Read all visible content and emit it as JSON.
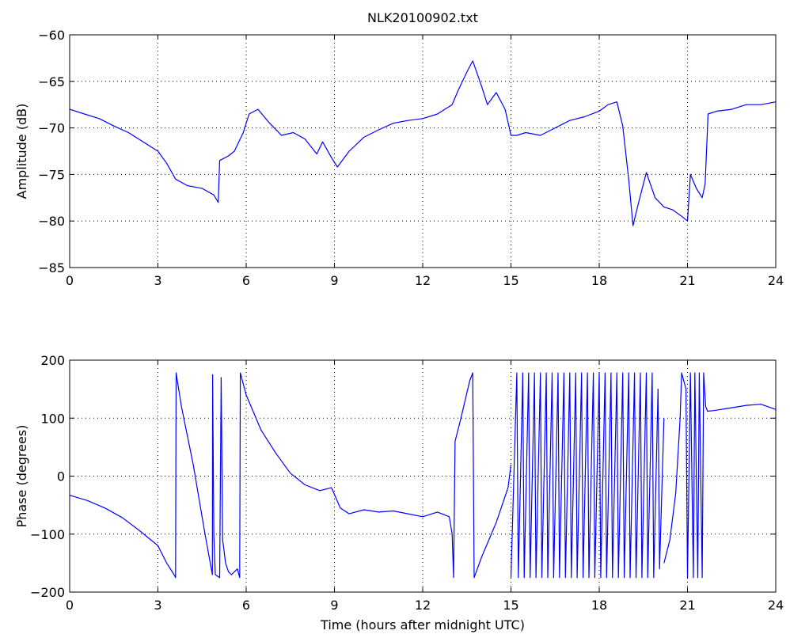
{
  "chart_data": [
    {
      "type": "line",
      "title": "NLK20100902.txt",
      "xlabel": "",
      "ylabel": "Amplitude (dB)",
      "xlim": [
        0,
        24
      ],
      "ylim": [
        -85,
        -60
      ],
      "xticks": [
        0,
        3,
        6,
        9,
        12,
        15,
        18,
        21,
        24
      ],
      "yticks": [
        -85,
        -80,
        -75,
        -70,
        -65,
        -60
      ],
      "xtick_labels": [
        "0",
        "3",
        "6",
        "9",
        "12",
        "15",
        "18",
        "21",
        "24"
      ],
      "ytick_labels": [
        "−85",
        "−80",
        "−75",
        "−70",
        "−65",
        "−60"
      ],
      "grid": true,
      "color": "#0000ff",
      "series": [
        {
          "x": [
            0,
            0.5,
            1,
            1.5,
            2,
            2.5,
            3,
            3.3,
            3.6,
            4,
            4.5,
            4.9,
            5.05,
            5.1,
            5.4,
            5.6,
            5.9,
            6.1,
            6.4,
            6.8,
            7.2,
            7.6,
            8,
            8.4,
            8.6,
            8.9,
            9.1,
            9.5,
            10,
            10.5,
            11,
            11.5,
            12,
            12.5,
            13,
            13.2,
            13.5,
            13.7,
            14,
            14.2,
            14.5,
            14.8,
            15,
            15.2,
            15.5,
            16,
            16.5,
            17,
            17.5,
            18,
            18.3,
            18.6,
            18.8,
            19,
            19.15,
            19.3,
            19.6,
            19.9,
            20.2,
            20.5,
            20.8,
            21,
            21.1,
            21.3,
            21.5,
            21.6,
            21.7,
            22,
            22.5,
            23,
            23.5,
            24
          ],
          "y": [
            -68,
            -68.5,
            -69,
            -69.8,
            -70.5,
            -71.5,
            -72.5,
            -73.8,
            -75.5,
            -76.2,
            -76.5,
            -77.2,
            -78,
            -73.5,
            -73,
            -72.5,
            -70.5,
            -68.5,
            -68,
            -69.5,
            -70.8,
            -70.5,
            -71.2,
            -72.8,
            -71.5,
            -73.2,
            -74.2,
            -72.5,
            -71,
            -70.2,
            -69.5,
            -69.2,
            -69,
            -68.5,
            -67.5,
            -66,
            -64,
            -62.8,
            -65.5,
            -67.5,
            -66.2,
            -68,
            -70.8,
            -70.8,
            -70.5,
            -70.8,
            -70,
            -69.2,
            -68.8,
            -68.2,
            -67.5,
            -67.2,
            -69.8,
            -75.5,
            -80.5,
            -78.5,
            -74.8,
            -77.5,
            -78.5,
            -78.8,
            -79.5,
            -80,
            -75,
            -76.5,
            -77.5,
            -76,
            -68.5,
            -68.2,
            -68,
            -67.5,
            -67.5,
            -67.2
          ]
        }
      ]
    },
    {
      "type": "line",
      "title": "",
      "xlabel": "Time (hours after midnight UTC)",
      "ylabel": "Phase (degrees)",
      "xlim": [
        0,
        24
      ],
      "ylim": [
        -200,
        200
      ],
      "xticks": [
        0,
        3,
        6,
        9,
        12,
        15,
        18,
        21,
        24
      ],
      "yticks": [
        -200,
        -100,
        0,
        100,
        200
      ],
      "xtick_labels": [
        "0",
        "3",
        "6",
        "9",
        "12",
        "15",
        "18",
        "21",
        "24"
      ],
      "ytick_labels": [
        "−200",
        "−100",
        "0",
        "100",
        "200"
      ],
      "grid": true,
      "color": "#0000ff",
      "series": [
        {
          "x": [
            0,
            0.6,
            1.2,
            1.8,
            2.4,
            3,
            3.3,
            3.55,
            3.6,
            3.62,
            3.8,
            4.2,
            4.6,
            4.85,
            4.86,
            4.9,
            4.95,
            5.1,
            5.15,
            5.2,
            5.3,
            5.4,
            5.5,
            5.7,
            5.78,
            5.8,
            6,
            6.5,
            7,
            7.5,
            8,
            8.5,
            8.9,
            9.2,
            9.5,
            10,
            10.5,
            11,
            11.5,
            12,
            12.5,
            12.9,
            13,
            13.05,
            13.1,
            13.3,
            13.6,
            13.7,
            13.75,
            14,
            14.5,
            14.9,
            15
          ],
          "y": [
            -33,
            -42,
            -55,
            -72,
            -95,
            -120,
            -150,
            -170,
            -175,
            178,
            120,
            20,
            -100,
            -170,
            175,
            -100,
            -170,
            -175,
            170,
            -110,
            -150,
            -165,
            -170,
            -160,
            -175,
            178,
            140,
            80,
            40,
            5,
            -15,
            -25,
            -20,
            -55,
            -65,
            -58,
            -62,
            -60,
            -65,
            -70,
            -62,
            -70,
            -100,
            -175,
            60,
            100,
            165,
            178,
            -175,
            -140,
            -80,
            -20,
            20
          ]
        },
        {
          "x": [
            15,
            15.2,
            15.25,
            15.4,
            15.45,
            15.6,
            15.65,
            15.8,
            15.85,
            16,
            16.05,
            16.2,
            16.25,
            16.4,
            16.45,
            16.6,
            16.65,
            16.8,
            16.85,
            17,
            17.05,
            17.2,
            17.25,
            17.4,
            17.45,
            17.6,
            17.65,
            17.8,
            17.85,
            18,
            18.05,
            18.2,
            18.25,
            18.4,
            18.45,
            18.6,
            18.65,
            18.8,
            18.85,
            19,
            19.05,
            19.2,
            19.25,
            19.4,
            19.45,
            19.6,
            19.65,
            19.8,
            19.85,
            20,
            20.05,
            20.2
          ],
          "y": [
            -175,
            178,
            -175,
            178,
            -175,
            178,
            -175,
            178,
            -175,
            178,
            -175,
            178,
            -175,
            178,
            -175,
            178,
            -175,
            178,
            -175,
            178,
            -175,
            178,
            -175,
            178,
            -175,
            178,
            -175,
            178,
            -175,
            178,
            -175,
            178,
            -175,
            178,
            -175,
            178,
            -175,
            178,
            -175,
            178,
            -175,
            178,
            -175,
            178,
            -175,
            178,
            -175,
            178,
            -175,
            150,
            -160,
            100
          ]
        },
        {
          "x": [
            20.2,
            20.4,
            20.6,
            20.75,
            20.8,
            20.95,
            21,
            21.1,
            21.2,
            21.25,
            21.35,
            21.4,
            21.5,
            21.55,
            21.62,
            21.68,
            21.9,
            22.5,
            23,
            23.5,
            24
          ],
          "y": [
            -150,
            -110,
            -30,
            100,
            178,
            150,
            -175,
            178,
            -175,
            178,
            -175,
            178,
            -175,
            178,
            120,
            112,
            113,
            118,
            122,
            124,
            115
          ]
        }
      ]
    }
  ]
}
